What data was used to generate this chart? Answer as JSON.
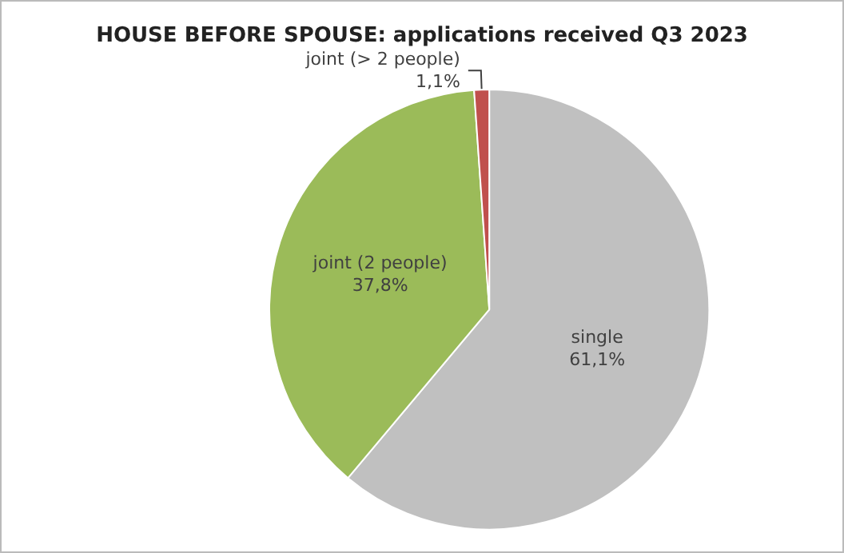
{
  "chart_data": {
    "type": "pie",
    "title": "HOUSE BEFORE SPOUSE: applications received Q3 2023",
    "categories": [
      "single",
      "joint (2 people)",
      "joint (> 2 people)"
    ],
    "values": [
      61.1,
      37.8,
      1.1
    ],
    "colors": [
      "#c0c0c0",
      "#9bbb59",
      "#c0504d"
    ],
    "value_labels": [
      "61,1%",
      "37,8%",
      "1,1%"
    ]
  }
}
